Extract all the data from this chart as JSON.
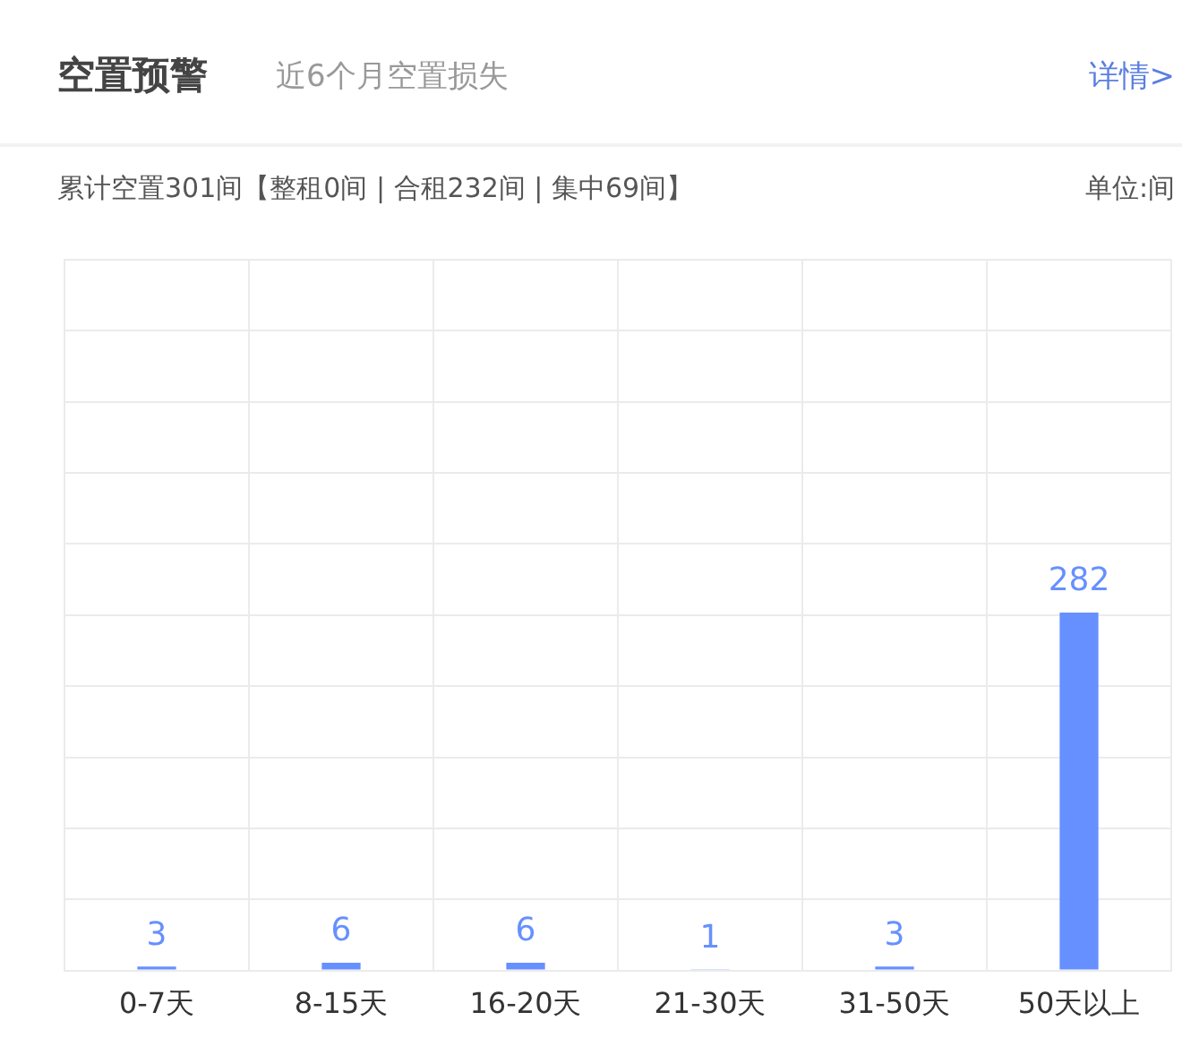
{
  "chart_data": {
    "type": "bar",
    "title": "空置预警",
    "subtitle": "近6个月空置损失",
    "annotations": [
      "详情>",
      "累计空置301间【整租0间 | 合租232间 | 集中69间】",
      "单位:间"
    ],
    "categories": [
      "0-7天",
      "8-15天",
      "16-20天",
      "21-30天",
      "31-50天",
      "50天以上"
    ],
    "values": [
      3,
      6,
      6,
      1,
      3,
      282
    ],
    "color": "#6690ff",
    "ylim": [
      0,
      560
    ],
    "yticks": [
      {
        "value": 0,
        "label": null
      },
      {
        "value": 56,
        "label": null
      },
      {
        "value": 112,
        "label": null
      },
      {
        "value": 168,
        "label": null
      },
      {
        "value": 224,
        "label": null
      },
      {
        "value": 280,
        "label": null
      },
      {
        "value": 336,
        "label": null
      },
      {
        "value": 392,
        "label": null
      },
      {
        "value": 448,
        "label": null
      },
      {
        "value": 504,
        "label": null
      },
      {
        "value": 560,
        "label": null
      }
    ],
    "grid": true,
    "tick_labels": "x",
    "data_labels": true
  }
}
